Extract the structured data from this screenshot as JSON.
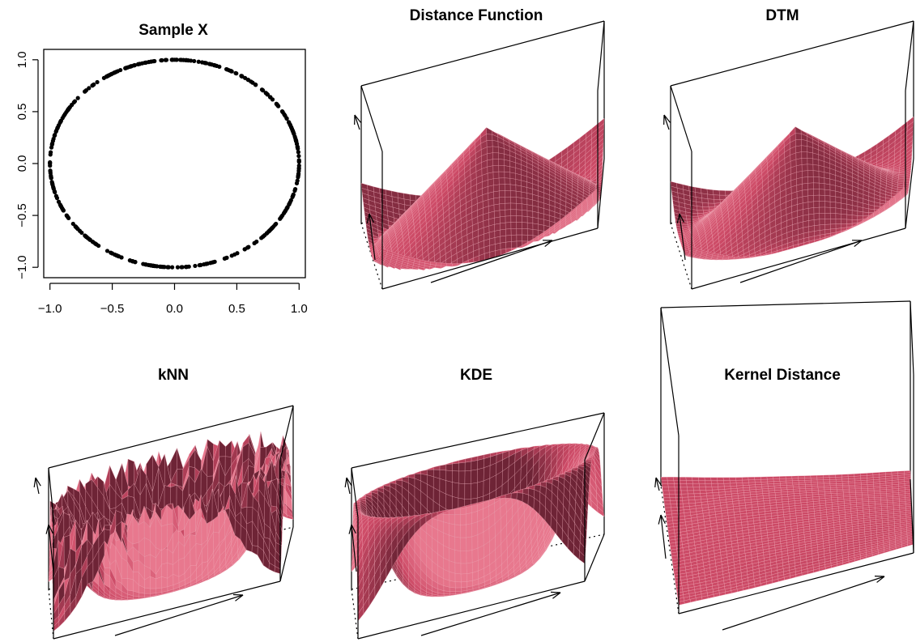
{
  "figure": {
    "panels": [
      {
        "title": "Sample X"
      },
      {
        "title": "Distance Function"
      },
      {
        "title": "DTM"
      },
      {
        "title": "kNN"
      },
      {
        "title": "KDE"
      },
      {
        "title": "Kernel Distance"
      }
    ]
  },
  "colors": {
    "surface_fill": "#cc4a66",
    "surface_mesh": "#f2aebc",
    "surface_shadow": "#6e2436",
    "points": "#000000",
    "frame": "#000000"
  },
  "chart_data": [
    {
      "type": "scatter",
      "title": "Sample X",
      "xlabel": "",
      "ylabel": "",
      "xlim": [
        -1.05,
        1.05
      ],
      "ylim": [
        -1.1,
        1.1
      ],
      "xticks": [
        "−1.0",
        "−0.5",
        "0.0",
        "0.5",
        "1.0"
      ],
      "yticks": [
        "−1.0",
        "−0.5",
        "0.0",
        "0.5",
        "1.0"
      ],
      "xtick_values": [
        -1.0,
        -0.5,
        0.0,
        0.5,
        1.0
      ],
      "ytick_values": [
        -1.0,
        -0.5,
        0.0,
        0.5,
        1.0
      ],
      "points_on": "unit circle",
      "n_points": 400,
      "grid": false
    },
    {
      "type": "surface",
      "title": "Distance Function",
      "shape": "distance to circle: high at corners, cone peak at center, zero on the circle"
    },
    {
      "type": "surface",
      "title": "DTM",
      "shape": "distance-to-measure: smooth version of distance function"
    },
    {
      "type": "surface",
      "title": "kNN",
      "shape": "k-nearest-neighbour distance: jagged ring with rough spikes"
    },
    {
      "type": "surface",
      "title": "KDE",
      "shape": "kernel density estimate: smooth ring-shaped ridge"
    },
    {
      "type": "surface",
      "title": "Kernel Distance",
      "shape": "kernel distance: nearly flat plane with faint ring"
    }
  ]
}
